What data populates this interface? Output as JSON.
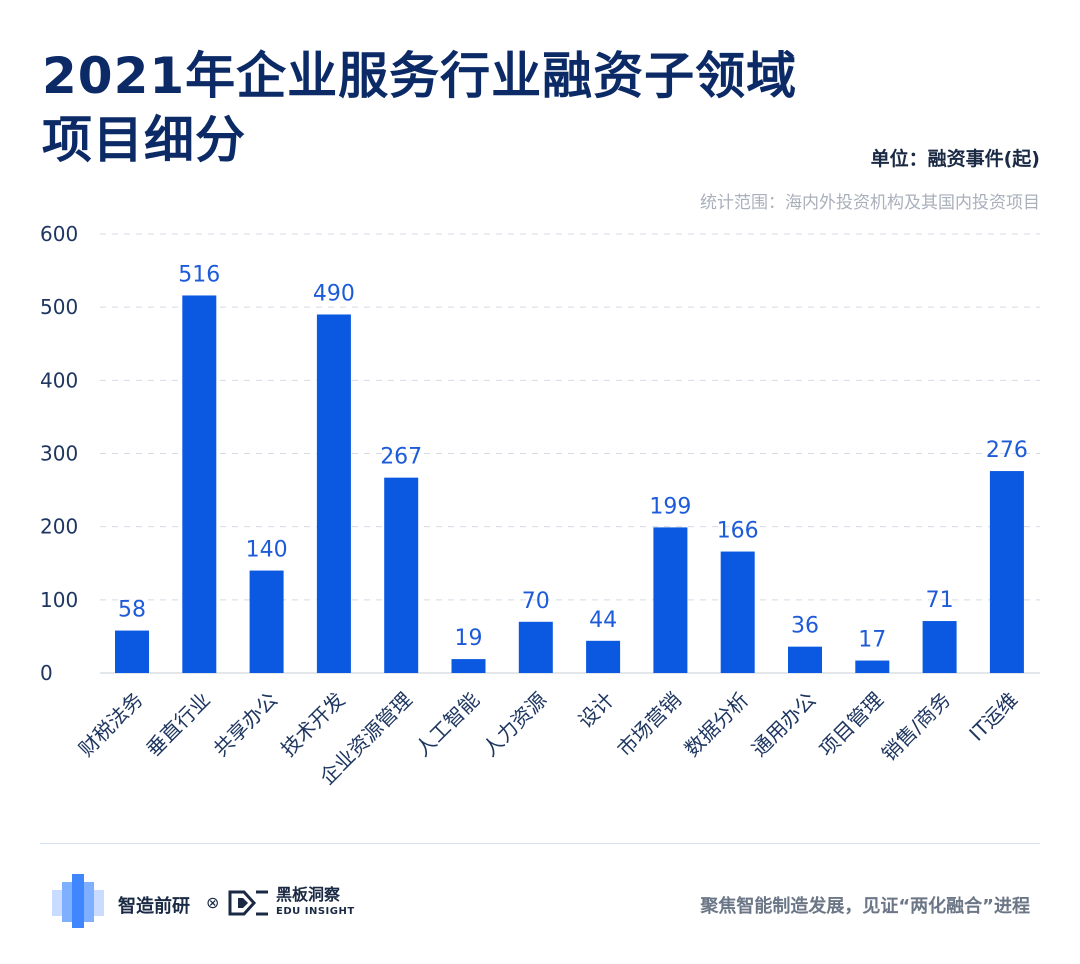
{
  "header": {
    "title_line1": "2021年企业服务行业融资子领域",
    "title_line2": "项目细分",
    "unit": "单位：融资事件(起)",
    "scope": "统计范围：海内外投资机构及其国内投资项目"
  },
  "chart_data": {
    "type": "bar",
    "title": "2021年企业服务行业融资子领域项目细分",
    "ylabel": "融资事件(起)",
    "xlabel": "",
    "ylim": [
      0,
      600
    ],
    "yticks": [
      0,
      100,
      200,
      300,
      400,
      500,
      600
    ],
    "grid": true,
    "bar_color": "#0b59e0",
    "label_color": "#1e5bd8",
    "categories": [
      "财税法务",
      "垂直行业",
      "共享办公",
      "技术开发",
      "企业资源管理",
      "人工智能",
      "人力资源",
      "设计",
      "市场营销",
      "数据分析",
      "通用办公",
      "项目管理",
      "销售/商务",
      "IT运维"
    ],
    "values": [
      58,
      516,
      140,
      490,
      267,
      19,
      70,
      44,
      199,
      166,
      36,
      17,
      71,
      276
    ]
  },
  "footer": {
    "brand": "智造前研",
    "cross": "⊗",
    "partner_name": "黑板洞察",
    "partner_sub": "EDU INSIGHT",
    "slogan": "聚焦智能制造发展，见证“两化融合”进程"
  }
}
